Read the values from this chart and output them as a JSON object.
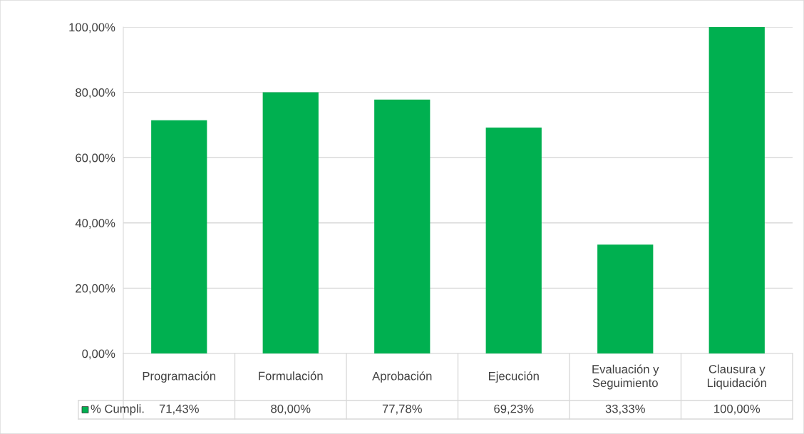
{
  "chart_data": {
    "type": "bar",
    "categories": [
      "Programación",
      "Formulación",
      "Aprobación",
      "Ejecución",
      "Evaluación y Seguimiento",
      "Clausura y Liquidación"
    ],
    "series": [
      {
        "name": "% Cumpli.",
        "color": "#00b050",
        "values": [
          71.43,
          80.0,
          77.78,
          69.23,
          33.33,
          100.0
        ],
        "value_labels": [
          "71,43%",
          "80,00%",
          "77,78%",
          "69,23%",
          "33,33%",
          "100,00%"
        ]
      }
    ],
    "ylim": [
      0,
      100
    ],
    "yticks": [
      {
        "value": 0,
        "label": "0,00%"
      },
      {
        "value": 20,
        "label": "20,00%"
      },
      {
        "value": 40,
        "label": "40,00%"
      },
      {
        "value": 60,
        "label": "60,00%"
      },
      {
        "value": 80,
        "label": "80,00%"
      },
      {
        "value": 100,
        "label": "100,00%"
      }
    ],
    "grid": "y",
    "legend": "bottom left"
  }
}
